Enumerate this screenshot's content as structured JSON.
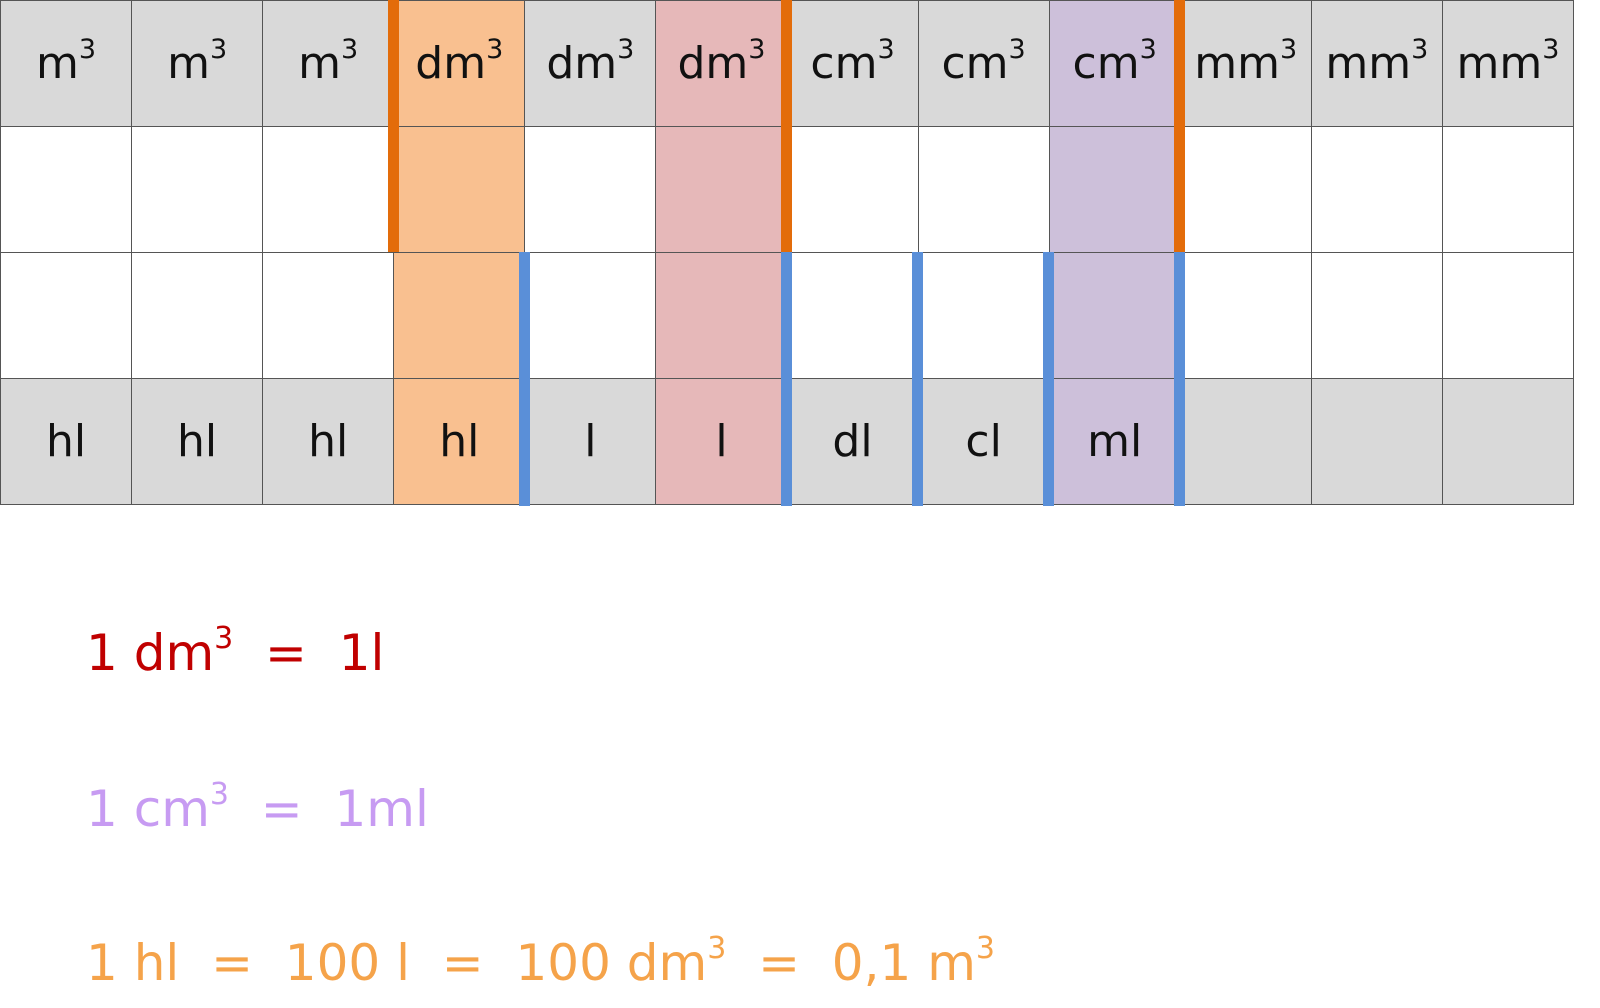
{
  "table": {
    "header_row": [
      {
        "base": "m",
        "exp": "3"
      },
      {
        "base": "m",
        "exp": "3"
      },
      {
        "base": "m",
        "exp": "3"
      },
      {
        "base": "dm",
        "exp": "3"
      },
      {
        "base": "dm",
        "exp": "3"
      },
      {
        "base": "dm",
        "exp": "3"
      },
      {
        "base": "cm",
        "exp": "3"
      },
      {
        "base": "cm",
        "exp": "3"
      },
      {
        "base": "cm",
        "exp": "3"
      },
      {
        "base": "mm",
        "exp": "3"
      },
      {
        "base": "mm",
        "exp": "3"
      },
      {
        "base": "mm",
        "exp": "3"
      }
    ],
    "footer_row": [
      "hl",
      "hl",
      "hl",
      "hl",
      "l",
      "l",
      "dl",
      "cl",
      "ml",
      "",
      "",
      ""
    ],
    "highlight_columns": {
      "orange": 3,
      "red": 5,
      "purple": 8
    },
    "colors": {
      "header_bg": "#d9d9d9",
      "orange_highlight": "#f9c090",
      "red_highlight": "#e6b8b9",
      "purple_highlight": "#cdc0da",
      "orange_separator": "#e36c0a",
      "blue_separator": "#5a8fd8"
    }
  },
  "equations": {
    "eq1": {
      "a": "1 dm",
      "a_exp": "3",
      "b": "  =  1l",
      "color": "#c00000"
    },
    "eq2": {
      "a": "1 cm",
      "a_exp": "3",
      "b": "  =  1ml",
      "color": "#c79bf2"
    },
    "eq3": {
      "a": "1 hl  =  100 l  =  100 dm",
      "a_exp": "3",
      "b": "  =  0,1 m",
      "b_exp": "3",
      "color": "#f5a34a"
    }
  }
}
